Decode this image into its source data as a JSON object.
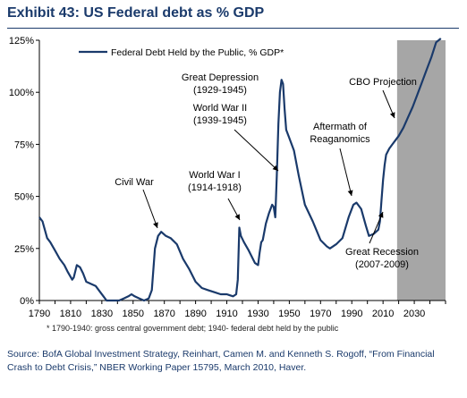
{
  "title": "Exhibit 43: US Federal debt as % GDP",
  "footnote": "* 1790-1940: gross central government debt; 1940- federal debt held by the public",
  "source": "Source: BofA Global Investment Strategy, Reinhart, Camen M. and Kenneth S. Rogoff, “From Financial Crash to Debt Crisis,” NBER Working Paper 15795, March 2010, Haver.",
  "chart_data": {
    "type": "line",
    "title": "",
    "xlabel": "",
    "ylabel": "",
    "xlim": [
      1790,
      2050
    ],
    "ylim": [
      0,
      125
    ],
    "x_ticks": [
      1790,
      1810,
      1830,
      1850,
      1870,
      1890,
      1910,
      1930,
      1950,
      1970,
      1990,
      2010,
      2030
    ],
    "y_ticks": [
      0,
      25,
      50,
      75,
      100,
      125
    ],
    "y_tick_labels": [
      "0%",
      "25%",
      "50%",
      "75%",
      "100%",
      "125%"
    ],
    "grid": false,
    "legend": "top-left",
    "line_color": "#1a3a6b",
    "shade": {
      "from": 2019,
      "to": 2050,
      "color": "#a6a6a6"
    },
    "series": [
      {
        "name": "Federal Debt Held by the Public, % GDP*",
        "x": [
          1790,
          1792,
          1795,
          1797,
          1800,
          1803,
          1806,
          1808,
          1811,
          1812,
          1814,
          1816,
          1818,
          1820,
          1823,
          1826,
          1829,
          1831,
          1833,
          1835,
          1838,
          1841,
          1844,
          1847,
          1849,
          1851,
          1854,
          1857,
          1860,
          1862,
          1864,
          1866,
          1868,
          1871,
          1874,
          1878,
          1882,
          1886,
          1890,
          1894,
          1898,
          1902,
          1906,
          1910,
          1914,
          1916,
          1917,
          1918,
          1919,
          1921,
          1924,
          1928,
          1930,
          1931,
          1932,
          1933,
          1935,
          1937,
          1939,
          1940,
          1941,
          1942,
          1943,
          1944,
          1945,
          1946,
          1947,
          1948,
          1950,
          1953,
          1956,
          1960,
          1965,
          1970,
          1974,
          1976,
          1980,
          1984,
          1988,
          1991,
          1993,
          1996,
          1999,
          2001,
          2004,
          2007,
          2008,
          2009,
          2010,
          2011,
          2012,
          2014,
          2016,
          2018,
          2020,
          2023,
          2026,
          2029,
          2032,
          2035,
          2038,
          2041,
          2044,
          2047
        ],
        "values": [
          40,
          38,
          30,
          28,
          24,
          20,
          17,
          14,
          10,
          11,
          17,
          16,
          13,
          9,
          8,
          7,
          4,
          2,
          0,
          0,
          0,
          0,
          1,
          2,
          3,
          2,
          1,
          0,
          1,
          5,
          25,
          31,
          33,
          31,
          30,
          27,
          20,
          15,
          9,
          6,
          5,
          4,
          3,
          3,
          2,
          3,
          10,
          35,
          31,
          28,
          24,
          18,
          17,
          23,
          28,
          29,
          37,
          42,
          46,
          45,
          40,
          60,
          85,
          100,
          106,
          104,
          92,
          82,
          78,
          72,
          60,
          46,
          38,
          29,
          26,
          25,
          27,
          30,
          40,
          46,
          47,
          44,
          36,
          31,
          32,
          34,
          38,
          48,
          58,
          65,
          70,
          73,
          75,
          77,
          79,
          83,
          88,
          93,
          99,
          105,
          111,
          117,
          124,
          131
        ]
      }
    ],
    "annotations": [
      {
        "text": "Civil War",
        "x": 1864,
        "y": 25
      },
      {
        "text": "World War I",
        "line2": "(1914-1918)",
        "x": 1918,
        "y": 35
      },
      {
        "text": "Great Depression",
        "line2": "(1929-1945)",
        "x": 1944,
        "y": 61
      },
      {
        "text": "World War II",
        "line2": "(1939-1945)",
        "x": 1944,
        "y": 61
      },
      {
        "text": "Aftermath of",
        "line2": "Reaganomics",
        "x": 1988,
        "y": 40
      },
      {
        "text": "CBO Projection",
        "x": 2017,
        "y": 77
      },
      {
        "text": "Great Recession",
        "line2": "(2007-2009)",
        "x": 2008,
        "y": 38
      }
    ]
  }
}
